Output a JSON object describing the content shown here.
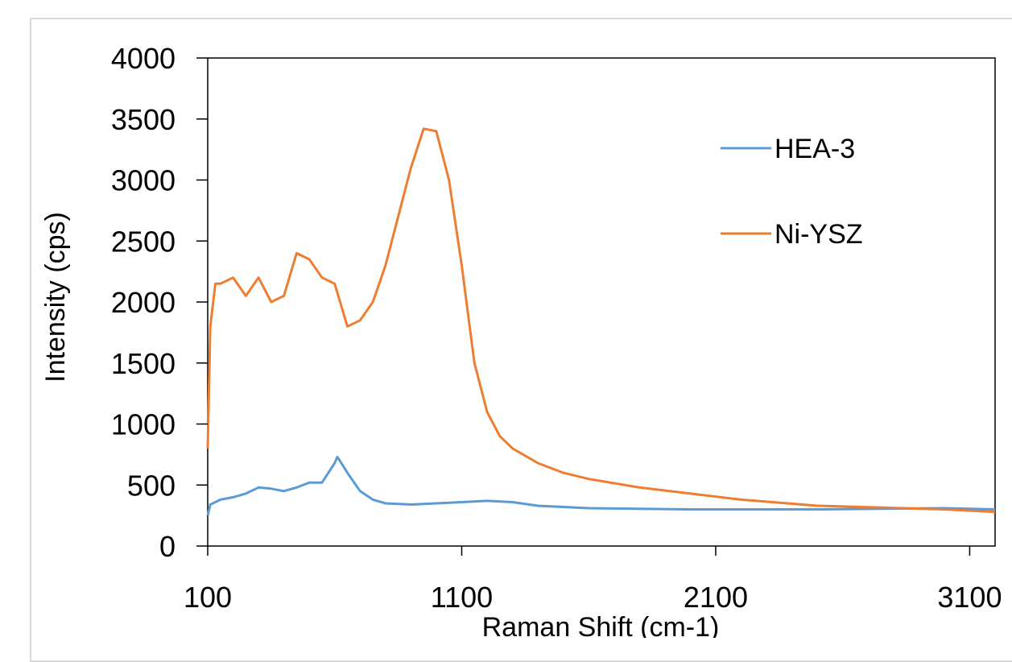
{
  "chart_data": {
    "type": "line",
    "title": "",
    "xlabel": "Raman Shift (cm-1)",
    "ylabel": "Intensity (cps)",
    "xlim": [
      100,
      3200
    ],
    "ylim": [
      0,
      4000
    ],
    "xticks": [
      "100",
      "1100",
      "2100",
      "3100"
    ],
    "yticks": [
      "0",
      "500",
      "1000",
      "1500",
      "2000",
      "2500",
      "3000",
      "3500",
      "4000"
    ],
    "grid": false,
    "legend_position": "top-right",
    "series": [
      {
        "name": "HEA-3",
        "color": "#5b9bd5",
        "x": [
          100,
          110,
          150,
          200,
          250,
          300,
          350,
          400,
          450,
          500,
          550,
          600,
          610,
          620,
          650,
          700,
          750,
          800,
          900,
          1000,
          1100,
          1200,
          1300,
          1400,
          1600,
          2000,
          2500,
          3000,
          3200
        ],
        "y": [
          250,
          340,
          380,
          400,
          430,
          480,
          470,
          450,
          480,
          520,
          520,
          680,
          730,
          700,
          600,
          450,
          380,
          350,
          340,
          350,
          360,
          370,
          360,
          330,
          310,
          300,
          300,
          310,
          300
        ]
      },
      {
        "name": "Ni-YSZ",
        "color": "#ed7d31",
        "x": [
          100,
          110,
          130,
          150,
          200,
          250,
          300,
          350,
          400,
          450,
          500,
          550,
          600,
          650,
          700,
          750,
          800,
          850,
          900,
          950,
          1000,
          1050,
          1100,
          1150,
          1200,
          1250,
          1300,
          1400,
          1500,
          1600,
          1800,
          2000,
          2200,
          2500,
          3000,
          3200
        ],
        "y": [
          800,
          1800,
          2150,
          2150,
          2200,
          2050,
          2200,
          2000,
          2050,
          2400,
          2350,
          2200,
          2150,
          1800,
          1850,
          2000,
          2300,
          2700,
          3100,
          3420,
          3400,
          3000,
          2300,
          1500,
          1100,
          900,
          800,
          680,
          600,
          550,
          480,
          430,
          380,
          330,
          300,
          280
        ]
      }
    ]
  }
}
